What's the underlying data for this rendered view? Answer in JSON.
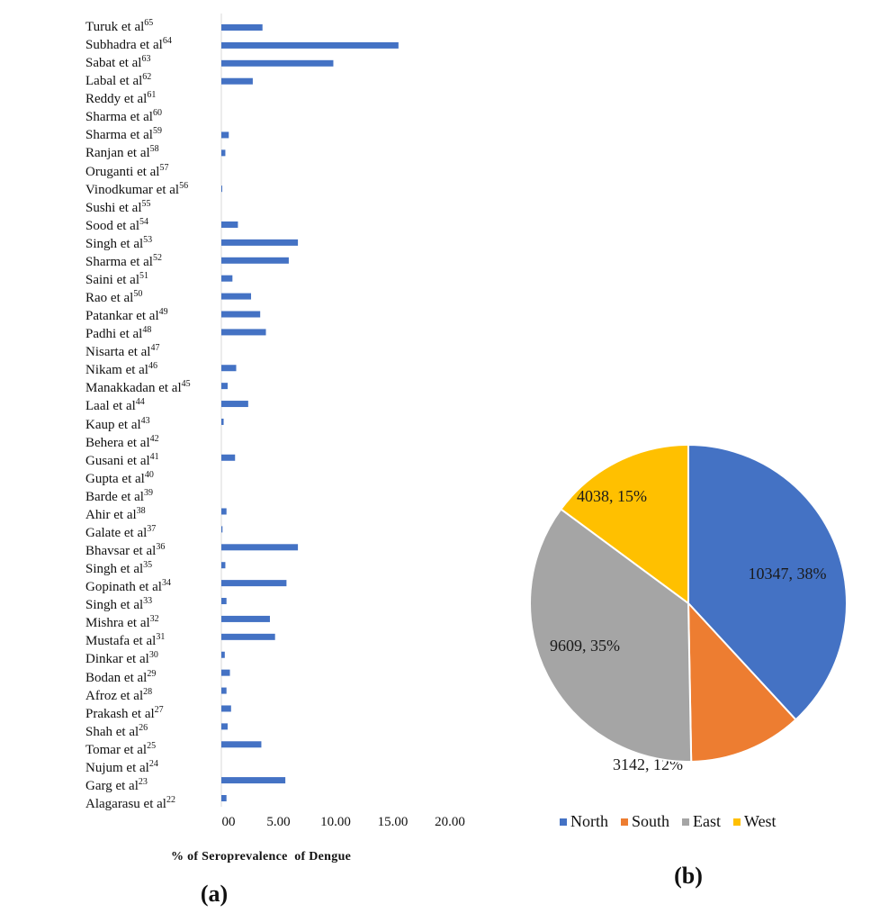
{
  "chart_data": [
    {
      "type": "bar",
      "orientation": "horizontal",
      "xlabel": "% of Seroprevalence  of Dengue",
      "panel_label": "(a)",
      "xlim": [
        0,
        20
      ],
      "x_ticks": [
        "00",
        "5.00",
        "10.00",
        "15.00",
        "20.00"
      ],
      "x_tick_values": [
        0,
        5,
        10,
        15,
        20
      ],
      "bar_color": "#4472C4",
      "grid": false,
      "categories": [
        {
          "name": "Turuk et al",
          "ref": "65"
        },
        {
          "name": "Subhadra et al",
          "ref": "64"
        },
        {
          "name": "Sabat et al",
          "ref": "63"
        },
        {
          "name": "Labal et al",
          "ref": "62"
        },
        {
          "name": "Reddy et al",
          "ref": "61"
        },
        {
          "name": "Sharma et al",
          "ref": "60"
        },
        {
          "name": "Sharma et al",
          "ref": "59"
        },
        {
          "name": "Ranjan et al",
          "ref": "58"
        },
        {
          "name": "Oruganti et al",
          "ref": "57"
        },
        {
          "name": "Vinodkumar et al",
          "ref": "56"
        },
        {
          "name": "Sushi et al",
          "ref": "55"
        },
        {
          "name": "Sood et al",
          "ref": "54"
        },
        {
          "name": "Singh et al",
          "ref": "53"
        },
        {
          "name": "Sharma et al",
          "ref": "52"
        },
        {
          "name": "Saini et al",
          "ref": "51"
        },
        {
          "name": "Rao et al",
          "ref": "50"
        },
        {
          "name": "Patankar et al",
          "ref": "49"
        },
        {
          "name": "Padhi et al",
          "ref": "48"
        },
        {
          "name": "Nisarta et al",
          "ref": "47"
        },
        {
          "name": "Nikam et al",
          "ref": "46"
        },
        {
          "name": "Manakkadan et al",
          "ref": "45"
        },
        {
          "name": "Laal et al",
          "ref": "44"
        },
        {
          "name": "Kaup et al",
          "ref": "43"
        },
        {
          "name": "Behera et al",
          "ref": "42"
        },
        {
          "name": "Gusani et al",
          "ref": "41"
        },
        {
          "name": "Gupta et al",
          "ref": "40"
        },
        {
          "name": "Barde et al",
          "ref": "39"
        },
        {
          "name": "Ahir et al",
          "ref": "38"
        },
        {
          "name": "Galate et al",
          "ref": "37"
        },
        {
          "name": "Bhavsar et al",
          "ref": "36"
        },
        {
          "name": "Singh et al",
          "ref": "35"
        },
        {
          "name": "Gopinath et al",
          "ref": "34"
        },
        {
          "name": "Singh et al",
          "ref": "33"
        },
        {
          "name": "Mishra et al",
          "ref": "32"
        },
        {
          "name": "Mustafa et al",
          "ref": "31"
        },
        {
          "name": "Dinkar et al",
          "ref": "30"
        },
        {
          "name": "Bodan et al",
          "ref": "29"
        },
        {
          "name": "Afroz et al",
          "ref": "28"
        },
        {
          "name": "Prakash et al",
          "ref": "27"
        },
        {
          "name": "Shah et al",
          "ref": "26"
        },
        {
          "name": "Tomar et al",
          "ref": "25"
        },
        {
          "name": "Nujum et al",
          "ref": "24"
        },
        {
          "name": "Garg et al",
          "ref": "23"
        },
        {
          "name": "Alagarasu et al",
          "ref": "22"
        }
      ],
      "values": [
        3.6,
        15.5,
        9.8,
        2.75,
        0,
        0,
        0.65,
        0.35,
        0,
        0.05,
        0,
        1.45,
        6.7,
        5.9,
        0.97,
        2.6,
        3.4,
        3.9,
        0,
        1.3,
        0.55,
        2.35,
        0.2,
        0,
        1.2,
        0,
        0,
        0.45,
        0.1,
        6.7,
        0.35,
        5.7,
        0.45,
        4.25,
        4.7,
        0.3,
        0.75,
        0.45,
        0.85,
        0.55,
        3.5,
        0,
        5.6,
        0.45
      ]
    },
    {
      "type": "pie",
      "panel_label": "(b)",
      "legend_position": "bottom",
      "slices": [
        {
          "name": "North",
          "value": 10347,
          "percent": "38%",
          "label": "10347, 38%",
          "color": "#4472C4"
        },
        {
          "name": "South",
          "value": 3142,
          "percent": "12%",
          "label": "3142, 12%",
          "color": "#ED7D31"
        },
        {
          "name": "East",
          "value": 9609,
          "percent": "35%",
          "label": "9609, 35%",
          "color": "#A5A5A5"
        },
        {
          "name": "West",
          "value": 4038,
          "percent": "15%",
          "label": "4038, 15%",
          "color": "#FFC000"
        }
      ]
    }
  ]
}
